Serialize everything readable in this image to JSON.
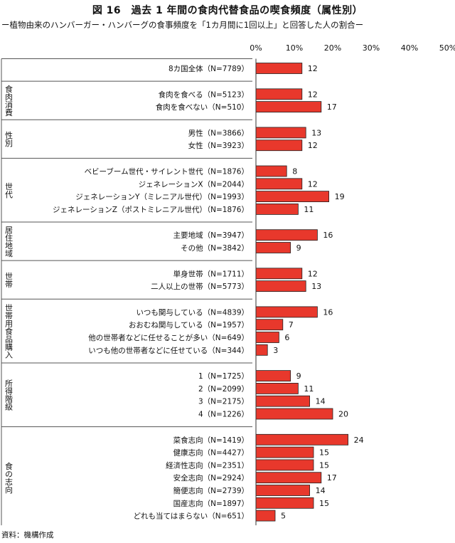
{
  "title": "図 16　過去 1 年間の食肉代替食品の喫食頻度（属性別）",
  "subtitle": "ー植物由来のハンバーガー・ハンバーグの食事頻度を「1カ月間に1回以上」と回答した人の割合ー",
  "source": "資料：機構作成",
  "colors": {
    "bar": "#e8382c",
    "bar_stroke": "#222222",
    "divider": "#555555"
  },
  "chart_data": {
    "type": "bar",
    "orientation": "horizontal",
    "title": "図 16　過去 1 年間の食肉代替食品の喫食頻度（属性別）",
    "xlim": [
      0,
      50
    ],
    "ticks": [
      "0%",
      "10%",
      "20%",
      "30%",
      "40%",
      "50%"
    ],
    "tick_values": [
      0,
      10,
      20,
      30,
      40,
      50
    ],
    "grid": false,
    "groups": [
      {
        "label": "",
        "rows": [
          {
            "label": "8カ国全体（N=7789）",
            "value": 12
          }
        ]
      },
      {
        "label": "食肉消費",
        "rows": [
          {
            "label": "食肉を食べる（N=5123）",
            "value": 12
          },
          {
            "label": "食肉を食べない（N=510）",
            "value": 17
          }
        ]
      },
      {
        "label": "性別",
        "rows": [
          {
            "label": "男性（N=3866）",
            "value": 13
          },
          {
            "label": "女性（N=3923）",
            "value": 12
          }
        ]
      },
      {
        "label": "世代",
        "rows": [
          {
            "label": "ベビーブーム世代・サイレント世代（N=1876）",
            "value": 8
          },
          {
            "label": "ジェネレーションX（N=2044）",
            "value": 12
          },
          {
            "label": "ジェネレーションY（ミレニアル世代）（N=1993）",
            "value": 19
          },
          {
            "label": "ジェネレーションZ（ポストミレニアル世代）（N=1876）",
            "value": 11
          }
        ]
      },
      {
        "label": "居住地域",
        "rows": [
          {
            "label": "主要地域（N=3947）",
            "value": 16
          },
          {
            "label": "その他（N=3842）",
            "value": 9
          }
        ]
      },
      {
        "label": "世帯",
        "rows": [
          {
            "label": "単身世帯（N=1711）",
            "value": 12
          },
          {
            "label": "二人以上の世帯（N=5773）",
            "value": 13
          }
        ]
      },
      {
        "label": "世帯用食品購入",
        "rows": [
          {
            "label": "いつも関与している（N=4839）",
            "value": 16
          },
          {
            "label": "おおむね関与している（N=1957）",
            "value": 7
          },
          {
            "label": "他の世帯者などに任せることが多い（N=649）",
            "value": 6
          },
          {
            "label": "いつも他の世帯者などに任せている（N=344）",
            "value": 3
          }
        ]
      },
      {
        "label": "所得階級",
        "rows": [
          {
            "label": "1（N=1725）",
            "value": 9
          },
          {
            "label": "2（N=2099）",
            "value": 11
          },
          {
            "label": "3（N=2175）",
            "value": 14
          },
          {
            "label": "4（N=1226）",
            "value": 20
          }
        ]
      },
      {
        "label": "食の志向",
        "rows": [
          {
            "label": "菜食志向（N=1419）",
            "value": 24
          },
          {
            "label": "健康志向（N=4427）",
            "value": 15
          },
          {
            "label": "経済性志向（N=2351）",
            "value": 15
          },
          {
            "label": "安全志向（N=2924）",
            "value": 17
          },
          {
            "label": "簡便志向（N=2739）",
            "value": 14
          },
          {
            "label": "国産志向（N=1897）",
            "value": 15
          },
          {
            "label": "どれも当てはまらない（N=651）",
            "value": 5
          }
        ]
      }
    ]
  }
}
